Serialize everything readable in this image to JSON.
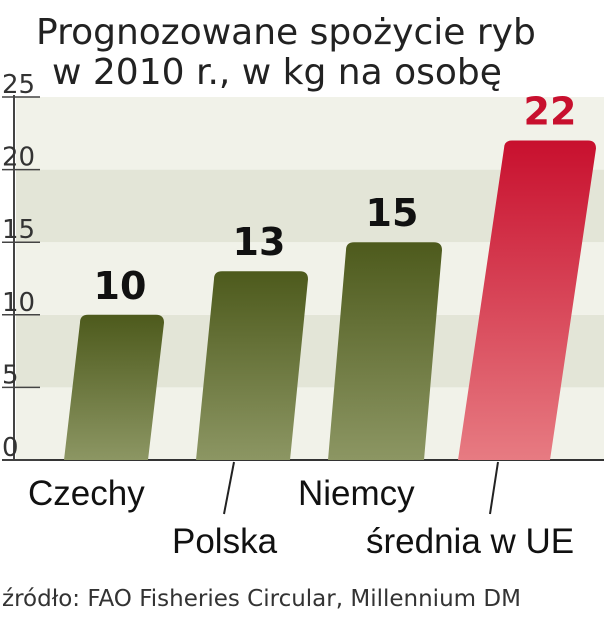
{
  "title_lines": [
    "Prognozowane spożycie ryb",
    "w 2010 r., w kg na osobę"
  ],
  "source": "źródło: FAO Fisheries Circular, Millennium DM",
  "colors": {
    "olive_top": "#4d5a1c",
    "olive_bottom": "#8c9663",
    "red_top": "#c8102e",
    "red_bottom": "#e77b82",
    "highlight_label": "#c8102e",
    "label": "#111111",
    "band_light": "#f1f2e9",
    "band_dark": "#e3e5d7"
  },
  "chart_data": {
    "type": "bar",
    "categories": [
      "Czechy",
      "Polska",
      "Niemcy",
      "średnia w UE"
    ],
    "values": [
      10,
      13,
      15,
      22
    ],
    "data_labels": [
      "10",
      "13",
      "15",
      "22"
    ],
    "highlight_index": 3,
    "ylim": [
      0,
      25
    ],
    "yticks": [
      0,
      5,
      10,
      15,
      20,
      25
    ],
    "ytick_labels": [
      "0",
      "5",
      "10",
      "15",
      "20",
      "25"
    ],
    "title": "Prognozowane spożycie ryb w 2010 r., w kg na osobę",
    "xlabel": "",
    "ylabel": "",
    "grid": false,
    "legend": "none"
  }
}
